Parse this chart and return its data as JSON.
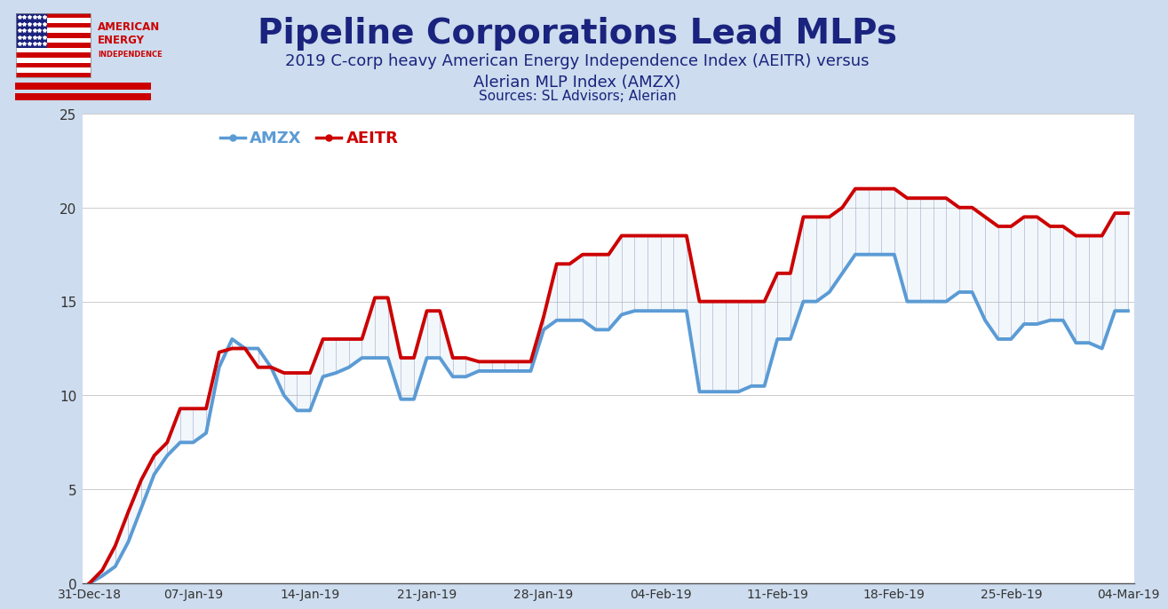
{
  "title": "Pipeline Corporations Lead MLPs",
  "subtitle": "2019 C-corp heavy American Energy Independence Index (AEITR) versus\nAlerian MLP Index (AMZX)",
  "sources": "Sources: SL Advisors; Alerian",
  "background_color": "#cddcee",
  "chart_background": "#ffffff",
  "header_background": "#cddcee",
  "ylim": [
    0,
    25
  ],
  "yticks": [
    0,
    5,
    10,
    15,
    20,
    25
  ],
  "xtick_labels": [
    "31-Dec-18",
    "07-Jan-19",
    "14-Jan-19",
    "21-Jan-19",
    "28-Jan-19",
    "04-Feb-19",
    "11-Feb-19",
    "18-Feb-19",
    "25-Feb-19",
    "04-Mar-19"
  ],
  "title_color": "#1a237e",
  "subtitle_color": "#1a237e",
  "amzx_color": "#5b9bd5",
  "aeitr_color": "#cc0000",
  "legend_amzx_label": "AMZX",
  "legend_aeitr_label": "AEITR",
  "amzx": [
    0.0,
    0.4,
    0.9,
    2.2,
    4.0,
    5.8,
    6.8,
    7.5,
    7.5,
    8.0,
    11.5,
    13.0,
    12.5,
    12.5,
    11.5,
    10.0,
    9.2,
    9.2,
    11.0,
    11.2,
    11.5,
    12.0,
    12.0,
    12.0,
    9.8,
    9.8,
    12.0,
    12.0,
    11.0,
    11.0,
    11.3,
    11.3,
    11.3,
    11.3,
    11.3,
    13.5,
    14.0,
    14.0,
    14.0,
    13.5,
    13.5,
    14.3,
    14.5,
    14.5,
    14.5,
    14.5,
    14.5,
    10.2,
    10.2,
    10.2,
    10.2,
    10.5,
    10.5,
    13.0,
    13.0,
    15.0,
    15.0,
    15.5,
    16.5,
    17.5,
    17.5,
    17.5,
    17.5,
    15.0,
    15.0,
    15.0,
    15.0,
    15.5,
    15.5,
    14.0,
    13.0,
    13.0,
    13.8,
    13.8,
    14.0,
    14.0,
    12.8,
    12.8,
    12.5,
    14.5,
    14.5
  ],
  "aeitr": [
    0.0,
    0.7,
    2.0,
    3.8,
    5.5,
    6.8,
    7.5,
    9.3,
    9.3,
    9.3,
    12.3,
    12.5,
    12.5,
    11.5,
    11.5,
    11.2,
    11.2,
    11.2,
    13.0,
    13.0,
    13.0,
    13.0,
    15.2,
    15.2,
    12.0,
    12.0,
    14.5,
    14.5,
    12.0,
    12.0,
    11.8,
    11.8,
    11.8,
    11.8,
    11.8,
    14.2,
    17.0,
    17.0,
    17.5,
    17.5,
    17.5,
    18.5,
    18.5,
    18.5,
    18.5,
    18.5,
    18.5,
    15.0,
    15.0,
    15.0,
    15.0,
    15.0,
    15.0,
    16.5,
    16.5,
    19.5,
    19.5,
    19.5,
    20.0,
    21.0,
    21.0,
    21.0,
    21.0,
    20.5,
    20.5,
    20.5,
    20.5,
    20.0,
    20.0,
    19.5,
    19.0,
    19.0,
    19.5,
    19.5,
    19.0,
    19.0,
    18.5,
    18.5,
    18.5,
    19.7,
    19.7
  ]
}
